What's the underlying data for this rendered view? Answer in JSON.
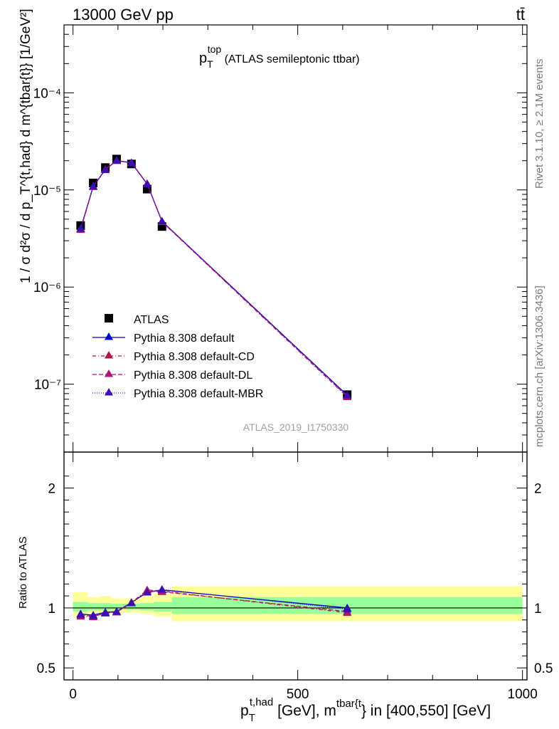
{
  "header": {
    "energy_label": "13000 GeV pp",
    "process_label": "tt̄"
  },
  "side_labels": {
    "rivet": "Rivet 3.1.10, ≥ 2.1M events",
    "mcplots": "mcplots.cern.ch [arXiv:1306.3436]"
  },
  "watermark": "ATLAS_2019_I1750330",
  "colors": {
    "data": "#000000",
    "default": "#0000cc",
    "cd": "#b3124b",
    "dl": "#b0127a",
    "mbr": "#3a10b5",
    "band_inner": "#99ff99",
    "band_outer": "#ffff99"
  },
  "chart_data": [
    {
      "type": "line",
      "panel": "main",
      "title_main": "p",
      "title_sub": "T",
      "title_sup": "top",
      "title_rest": " (ATLAS semileptonic ttbar)",
      "ylabel": "1 / σ d²σ / d p_T^{t,had} d m^{tbar{t}} [1/GeV²]",
      "yscale": "log",
      "ylim": [
        2e-08,
        0.0005
      ],
      "xlim": [
        -20,
        1010
      ],
      "yticks": [
        {
          "value": 1e-07,
          "label": "10⁻⁷"
        },
        {
          "value": 1e-06,
          "label": "10⁻⁶"
        },
        {
          "value": 1e-05,
          "label": "10⁻⁵"
        },
        {
          "value": 0.0001,
          "label": "10⁻⁴"
        }
      ],
      "legend_position": "bottom-left",
      "series": [
        {
          "name": "ATLAS",
          "key": "data",
          "marker": "square",
          "x": [
            17,
            45,
            72,
            97,
            130,
            165,
            198,
            610
          ],
          "y": [
            4.3e-06,
            1.18e-05,
            1.7e-05,
            2.08e-05,
            1.85e-05,
            1.02e-05,
            4.2e-06,
            7.8e-08
          ]
        },
        {
          "name": "Pythia 8.308 default",
          "key": "default",
          "marker": "triangle",
          "dash": "",
          "x": [
            17,
            45,
            72,
            97,
            130,
            165,
            198,
            610
          ],
          "y": [
            4e-06,
            1.09e-05,
            1.62e-05,
            2.01e-05,
            1.9e-05,
            1.15e-05,
            4.75e-06,
            7.7e-08
          ]
        },
        {
          "name": "Pythia 8.308 default-CD",
          "key": "cd",
          "marker": "triangle",
          "dash": "5,3,1,3",
          "x": [
            17,
            45,
            72,
            97,
            130,
            165,
            198,
            610
          ],
          "y": [
            3.9e-06,
            1.08e-05,
            1.63e-05,
            2e-05,
            1.91e-05,
            1.16e-05,
            4.7e-06,
            7.4e-08
          ]
        },
        {
          "name": "Pythia 8.308 default-DL",
          "key": "dl",
          "marker": "triangle",
          "dash": "6,3",
          "x": [
            17,
            45,
            72,
            97,
            130,
            165,
            198,
            610
          ],
          "y": [
            3.95e-06,
            1.08e-05,
            1.62e-05,
            2e-05,
            1.9e-05,
            1.16e-05,
            4.72e-06,
            7.5e-08
          ]
        },
        {
          "name": "Pythia 8.308 default-MBR",
          "key": "mbr",
          "marker": "triangle",
          "dash": "1,2",
          "x": [
            17,
            45,
            72,
            97,
            130,
            165,
            198,
            610
          ],
          "y": [
            4e-06,
            1.09e-05,
            1.61e-05,
            2.01e-05,
            1.9e-05,
            1.15e-05,
            4.78e-06,
            7.7e-08
          ]
        }
      ]
    },
    {
      "type": "line",
      "panel": "ratio",
      "ylabel": "Ratio to ATLAS",
      "ylim": [
        0.4,
        2.3
      ],
      "xlim": [
        -20,
        1010
      ],
      "yticks": [
        {
          "value": 0.5,
          "label": "0.5"
        },
        {
          "value": 1,
          "label": "1"
        },
        {
          "value": 2,
          "label": "2"
        }
      ],
      "xticks": [
        {
          "value": 0,
          "label": "0"
        },
        {
          "value": 500,
          "label": "500"
        },
        {
          "value": 1000,
          "label": "1000"
        }
      ],
      "xlabel_parts": {
        "p": "p",
        "sub": "T",
        "sup1": "t,had",
        "mid": " [GeV], m",
        "sup2": "tbar{t",
        "end": "} in [400,550] [GeV]"
      },
      "bands": [
        {
          "x0": 0,
          "x1": 33,
          "inner": [
            0.97,
            1.05
          ],
          "outer": [
            0.93,
            1.13
          ]
        },
        {
          "x0": 33,
          "x1": 60,
          "inner": [
            0.98,
            1.04
          ],
          "outer": [
            0.95,
            1.09
          ]
        },
        {
          "x0": 60,
          "x1": 85,
          "inner": [
            0.98,
            1.04
          ],
          "outer": [
            0.95,
            1.1
          ]
        },
        {
          "x0": 85,
          "x1": 110,
          "inner": [
            0.985,
            1.035
          ],
          "outer": [
            0.96,
            1.08
          ]
        },
        {
          "x0": 110,
          "x1": 150,
          "inner": [
            0.985,
            1.035
          ],
          "outer": [
            0.96,
            1.08
          ]
        },
        {
          "x0": 150,
          "x1": 180,
          "inner": [
            0.98,
            1.04
          ],
          "outer": [
            0.95,
            1.1
          ]
        },
        {
          "x0": 180,
          "x1": 220,
          "inner": [
            0.97,
            1.05
          ],
          "outer": [
            0.93,
            1.12
          ]
        },
        {
          "x0": 220,
          "x1": 1000,
          "inner": [
            0.95,
            1.09
          ],
          "outer": [
            0.89,
            1.18
          ]
        }
      ],
      "series": [
        {
          "key": "default",
          "dash": "",
          "x": [
            17,
            45,
            72,
            97,
            130,
            165,
            198,
            610
          ],
          "y": [
            0.95,
            0.94,
            0.965,
            0.97,
            1.045,
            1.13,
            1.15,
            1.0
          ]
        },
        {
          "key": "cd",
          "dash": "5,3,1,3",
          "x": [
            17,
            45,
            72,
            97,
            130,
            165,
            198,
            610
          ],
          "y": [
            0.93,
            0.925,
            0.96,
            0.965,
            1.045,
            1.15,
            1.14,
            0.96
          ]
        },
        {
          "key": "dl",
          "dash": "6,3",
          "x": [
            17,
            45,
            72,
            97,
            130,
            165,
            198,
            610
          ],
          "y": [
            0.94,
            0.93,
            0.955,
            0.965,
            1.04,
            1.14,
            1.135,
            0.97
          ]
        },
        {
          "key": "mbr",
          "dash": "1,2",
          "x": [
            17,
            45,
            72,
            97,
            130,
            165,
            198,
            610
          ],
          "y": [
            0.945,
            0.935,
            0.96,
            0.97,
            1.045,
            1.13,
            1.155,
            0.99
          ]
        }
      ]
    }
  ]
}
